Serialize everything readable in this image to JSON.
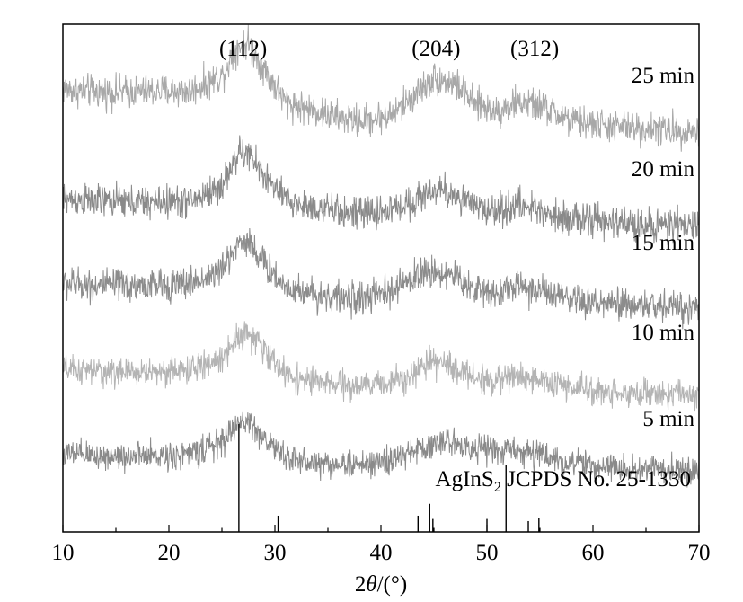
{
  "chart_data": {
    "type": "line",
    "title": "",
    "xlabel_prefix": "2",
    "xlabel_italic": "θ",
    "xlabel_suffix": "/(°)",
    "ylabel": "",
    "xlim": [
      10,
      70
    ],
    "x_ticks": [
      10,
      20,
      30,
      40,
      50,
      60,
      70
    ],
    "x_tick_labels": [
      "10",
      "20",
      "30",
      "40",
      "50",
      "60",
      "70"
    ],
    "grid": false,
    "peak_labels": [
      {
        "text": "(112)",
        "x": 27.0
      },
      {
        "text": "(204)",
        "x": 45.2
      },
      {
        "text": "(312)",
        "x": 54.5
      }
    ],
    "series": [
      {
        "name": "25 min",
        "color": "#a8a8a8",
        "x": [
          10,
          14,
          18,
          22,
          25,
          26.5,
          27.5,
          29,
          31,
          33,
          35,
          38,
          41,
          43,
          45,
          47,
          49,
          51,
          53,
          55,
          58,
          62,
          66,
          70
        ],
        "y": [
          41.0,
          40.7,
          40.8,
          40.8,
          42.2,
          45.0,
          45.3,
          42.8,
          39.8,
          39.2,
          38.6,
          38.0,
          38.6,
          40.3,
          42.0,
          41.5,
          39.5,
          39.0,
          39.8,
          39.4,
          38.0,
          37.5,
          37.3,
          37.1
        ],
        "noise": 1.5
      },
      {
        "name": "20 min",
        "color": "#8a8a8a",
        "x": [
          10,
          14,
          18,
          22,
          25,
          26.5,
          27.5,
          29,
          31,
          33,
          35,
          38,
          41,
          43,
          45,
          47,
          49,
          51,
          53,
          55,
          58,
          62,
          66,
          70
        ],
        "y": [
          30.8,
          30.6,
          30.5,
          30.6,
          32.0,
          35.0,
          35.0,
          33.0,
          30.7,
          30.1,
          29.8,
          29.4,
          29.8,
          30.6,
          31.7,
          31.2,
          30.0,
          29.7,
          30.3,
          29.8,
          29.0,
          28.6,
          28.4,
          28.3
        ],
        "noise": 1.5
      },
      {
        "name": "15 min",
        "color": "#8c8c8c",
        "x": [
          10,
          14,
          18,
          22,
          25,
          26.5,
          27.5,
          29,
          31,
          33,
          35,
          38,
          41,
          43,
          45,
          47,
          49,
          51,
          53,
          55,
          58,
          62,
          66,
          70
        ],
        "y": [
          23.0,
          22.8,
          22.8,
          23.0,
          24.2,
          26.8,
          27.0,
          24.8,
          22.7,
          22.2,
          21.8,
          21.6,
          22.2,
          23.6,
          24.2,
          23.6,
          22.4,
          22.2,
          22.8,
          22.3,
          21.3,
          21.0,
          20.9,
          20.8
        ],
        "noise": 1.5
      },
      {
        "name": "10 min",
        "color": "#b4b4b4",
        "x": [
          10,
          14,
          18,
          22,
          25,
          26.5,
          27.5,
          29,
          31,
          33,
          35,
          38,
          41,
          43,
          45,
          47,
          49,
          51,
          53,
          55,
          58,
          62,
          66,
          70
        ],
        "y": [
          15.0,
          14.8,
          14.8,
          15.0,
          16.0,
          18.2,
          18.4,
          16.8,
          14.6,
          14.0,
          13.7,
          13.4,
          13.9,
          14.7,
          15.7,
          15.2,
          14.2,
          14.0,
          14.5,
          14.0,
          13.3,
          12.9,
          12.8,
          12.7
        ],
        "noise": 1.3
      },
      {
        "name": "5 min",
        "color": "#8a8a8a",
        "x": [
          10,
          14,
          18,
          22,
          25,
          26.5,
          27.5,
          29,
          31,
          33,
          35,
          38,
          41,
          43,
          45,
          47,
          49,
          51,
          53,
          55,
          58,
          62,
          66,
          70
        ],
        "y": [
          7.2,
          7.0,
          7.0,
          7.2,
          8.3,
          10.0,
          10.3,
          8.6,
          6.9,
          6.5,
          6.3,
          6.2,
          6.6,
          7.4,
          8.2,
          8.3,
          7.8,
          7.5,
          7.6,
          7.1,
          6.3,
          5.9,
          5.8,
          5.7
        ],
        "noise": 1.3
      }
    ],
    "reference": {
      "label_prefix": "AgInS",
      "label_subscript": "2",
      "label_suffix": " JCPDS No. 25-1330",
      "color": "#000000",
      "lines": [
        {
          "x": 26.6,
          "h": 10
        },
        {
          "x": 30.3,
          "h": 1.5
        },
        {
          "x": 43.5,
          "h": 1.5
        },
        {
          "x": 44.6,
          "h": 2.6
        },
        {
          "x": 44.9,
          "h": 1.2
        },
        {
          "x": 50.0,
          "h": 1.2
        },
        {
          "x": 51.8,
          "h": 6.2
        },
        {
          "x": 53.9,
          "h": 1.0
        },
        {
          "x": 54.9,
          "h": 1.3
        }
      ]
    }
  }
}
